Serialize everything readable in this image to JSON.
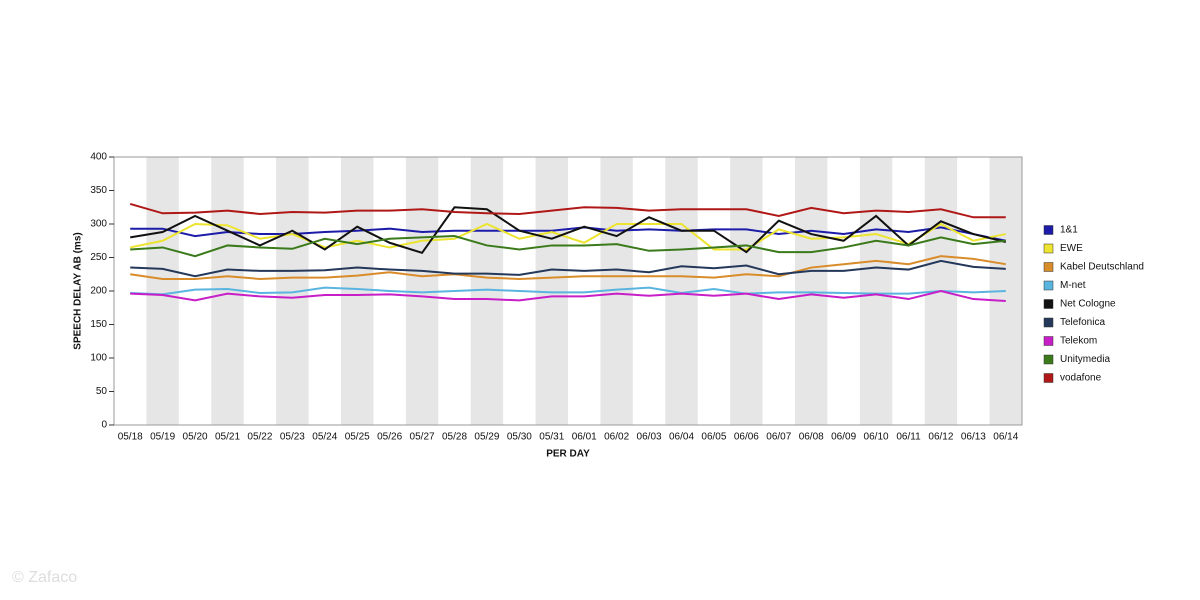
{
  "chart_data": {
    "type": "line",
    "ylabel": "SPEECH DELAY AB (ms)",
    "xlabel": "PER DAY",
    "watermark": "© Zafaco",
    "categories": [
      "05/18",
      "05/19",
      "05/20",
      "05/21",
      "05/22",
      "05/23",
      "05/24",
      "05/25",
      "05/26",
      "05/27",
      "05/28",
      "05/29",
      "05/30",
      "05/31",
      "06/01",
      "06/02",
      "06/03",
      "06/04",
      "06/05",
      "06/06",
      "06/07",
      "06/08",
      "06/09",
      "06/10",
      "06/11",
      "06/12",
      "06/13",
      "06/14"
    ],
    "ylim": [
      0,
      400
    ],
    "yticks": [
      0,
      50,
      100,
      150,
      200,
      250,
      300,
      350,
      400
    ],
    "bands": true,
    "legend": "right",
    "series": [
      {
        "name": "1&1",
        "color": "#1c1ca8",
        "values": [
          293,
          293,
          282,
          288,
          285,
          285,
          288,
          290,
          293,
          288,
          290,
          290,
          290,
          290,
          295,
          290,
          292,
          290,
          292,
          292,
          285,
          290,
          285,
          292,
          288,
          295,
          285,
          275
        ]
      },
      {
        "name": "EWE",
        "color": "#ece42e",
        "values": [
          265,
          275,
          300,
          298,
          278,
          285,
          265,
          275,
          265,
          275,
          278,
          300,
          278,
          288,
          272,
          300,
          300,
          300,
          262,
          262,
          292,
          278,
          280,
          285,
          270,
          300,
          275,
          285
        ]
      },
      {
        "name": "Kabel Deutschland",
        "color": "#d98c2a",
        "values": [
          225,
          218,
          218,
          222,
          218,
          220,
          220,
          223,
          228,
          222,
          225,
          220,
          218,
          220,
          222,
          222,
          222,
          222,
          220,
          225,
          222,
          235,
          240,
          245,
          240,
          252,
          248,
          240
        ]
      },
      {
        "name": "M-net",
        "color": "#5ab4e0",
        "values": [
          197,
          195,
          202,
          203,
          197,
          198,
          205,
          203,
          200,
          198,
          200,
          202,
          200,
          198,
          198,
          202,
          205,
          197,
          203,
          196,
          198,
          198,
          197,
          196,
          196,
          200,
          198,
          200
        ]
      },
      {
        "name": "Net Cologne",
        "color": "#111111",
        "values": [
          280,
          288,
          312,
          290,
          268,
          290,
          262,
          296,
          272,
          257,
          325,
          322,
          290,
          278,
          296,
          282,
          310,
          290,
          290,
          258,
          305,
          285,
          275,
          312,
          268,
          304,
          285,
          273
        ]
      },
      {
        "name": "Telefonica",
        "color": "#24385a",
        "values": [
          235,
          233,
          222,
          232,
          230,
          230,
          231,
          235,
          232,
          230,
          226,
          226,
          224,
          232,
          230,
          232,
          228,
          237,
          234,
          238,
          225,
          230,
          230,
          235,
          232,
          245,
          236,
          233
        ]
      },
      {
        "name": "Telekom",
        "color": "#c81ec8",
        "values": [
          196,
          194,
          186,
          196,
          192,
          190,
          194,
          194,
          195,
          192,
          188,
          188,
          186,
          192,
          192,
          196,
          193,
          196,
          193,
          196,
          188,
          195,
          190,
          195,
          188,
          200,
          188,
          185
        ]
      },
      {
        "name": "Unitymedia",
        "color": "#3a7a1a",
        "values": [
          262,
          265,
          252,
          268,
          265,
          263,
          278,
          270,
          278,
          280,
          282,
          268,
          262,
          268,
          268,
          270,
          260,
          262,
          265,
          268,
          258,
          258,
          265,
          275,
          268,
          280,
          270,
          275
        ]
      },
      {
        "name": "vodafone",
        "color": "#b01818",
        "values": [
          330,
          316,
          317,
          320,
          315,
          318,
          317,
          320,
          320,
          322,
          318,
          316,
          315,
          320,
          325,
          324,
          320,
          322,
          322,
          322,
          312,
          324,
          316,
          320,
          318,
          322,
          310,
          310
        ]
      }
    ]
  }
}
